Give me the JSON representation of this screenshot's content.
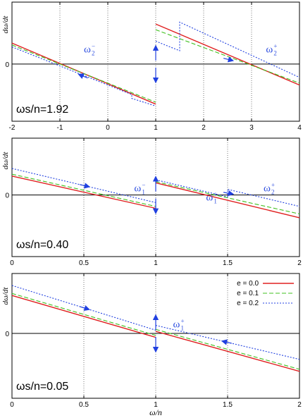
{
  "colors": {
    "e0": "#e02020",
    "e1": "#40c020",
    "e2": "#2040e0",
    "frame": "#000000",
    "grid": "#555555"
  },
  "chart_data": [
    {
      "type": "line",
      "panel": "top",
      "ylabel": "dω/dt",
      "xlabel": "",
      "ratio_label": "ωs/n=1.92",
      "xlim": [
        -2,
        4
      ],
      "x_ticks": [
        -2,
        -1,
        0,
        1,
        2,
        3,
        4
      ],
      "x_tick_labels": [
        "-2",
        "-1",
        "0",
        "1",
        "2",
        "3",
        "4"
      ],
      "y_ticks": [
        0
      ],
      "y_tick_labels": [
        "0"
      ],
      "ylim": [
        -1.6,
        1.6
      ],
      "grid_x": [
        -1,
        0,
        1,
        2,
        3
      ],
      "series": [
        {
          "name": "e = 0.0",
          "style": "solid",
          "segments": [
            [
              [
                -2,
                0.55
              ],
              [
                1,
                -1.05
              ]
            ],
            [
              [
                1,
                1.05
              ],
              [
                4,
                -0.55
              ]
            ]
          ]
        },
        {
          "name": "e = 0.1",
          "style": "dashed",
          "segments": [
            [
              [
                -2,
                0.5
              ],
              [
                1,
                -1.0
              ]
            ],
            [
              [
                1,
                0.9
              ],
              [
                4,
                -0.5
              ]
            ]
          ]
        },
        {
          "name": "e = 0.2",
          "style": "dotted",
          "segments": [
            [
              [
                -2,
                0.45
              ],
              [
                0.5,
                -0.8
              ],
              [
                0.5,
                -0.9
              ],
              [
                1,
                -1.1
              ]
            ],
            [
              [
                1,
                0.6
              ],
              [
                1.5,
                0.35
              ],
              [
                1.5,
                1.1
              ],
              [
                4,
                -0.35
              ]
            ]
          ]
        }
      ],
      "annotations": [
        {
          "text": "ω",
          "sup": "−",
          "sub": "2",
          "x": -0.5,
          "y": 0.3
        },
        {
          "text": "ω",
          "sup": "+",
          "sub": "2",
          "x": 3.3,
          "y": 0.3
        }
      ]
    },
    {
      "type": "line",
      "panel": "middle",
      "ylabel": "dω/dt",
      "xlabel": "",
      "ratio_label": "ωs/n=0.40",
      "xlim": [
        0,
        2
      ],
      "x_ticks": [
        0,
        0.5,
        1,
        1.5,
        2
      ],
      "x_tick_labels": [
        "0",
        "0.5",
        "1",
        "1.5",
        "2"
      ],
      "y_ticks": [
        0
      ],
      "y_tick_labels": [
        "0"
      ],
      "ylim": [
        -1.6,
        1.1
      ],
      "grid_x": [
        0.5,
        1,
        1.5
      ],
      "series": [
        {
          "name": "e = 0.0",
          "style": "solid",
          "segments": [
            [
              [
                0,
                0.5
              ],
              [
                1,
                -0.35
              ]
            ],
            [
              [
                1,
                0.32
              ],
              [
                2,
                -0.6
              ]
            ]
          ]
        },
        {
          "name": "e = 0.1",
          "style": "dashed",
          "segments": [
            [
              [
                0,
                0.55
              ],
              [
                1,
                -0.3
              ]
            ],
            [
              [
                1,
                0.35
              ],
              [
                2,
                -0.5
              ]
            ]
          ]
        },
        {
          "name": "e = 0.2",
          "style": "dotted",
          "segments": [
            [
              [
                0,
                0.7
              ],
              [
                1,
                -0.2
              ]
            ],
            [
              [
                1,
                0.4
              ],
              [
                1.5,
                -0.05
              ],
              [
                1.5,
                0.15
              ],
              [
                2,
                -0.3
              ]
            ]
          ]
        }
      ],
      "annotations": [
        {
          "text": "ω",
          "sup": "−",
          "sub": "1",
          "x": 0.85,
          "y": 0.1
        },
        {
          "text": "ω",
          "sup": "+",
          "sub": "1",
          "x": 1.35,
          "y": -0.15
        },
        {
          "text": "ω",
          "sup": "+",
          "sub": "2",
          "x": 1.75,
          "y": 0.1
        }
      ]
    },
    {
      "type": "line",
      "panel": "bottom",
      "ylabel": "dω/dt",
      "xlabel": "ω/n",
      "ratio_label": "ωs/n=0.05",
      "xlim": [
        0,
        2
      ],
      "x_ticks": [
        0,
        0.5,
        1,
        1.5,
        2
      ],
      "x_tick_labels": [
        "0",
        "0.5",
        "1",
        "1.5",
        "2"
      ],
      "y_ticks": [
        0
      ],
      "y_tick_labels": [
        "0"
      ],
      "ylim": [
        -1.6,
        1.1
      ],
      "grid_x": [
        0.5,
        1,
        1.5
      ],
      "legend": "top-right",
      "series": [
        {
          "name": "e = 0.0",
          "style": "solid",
          "segments": [
            [
              [
                0,
                0.95
              ],
              [
                1,
                -0.1
              ]
            ],
            [
              [
                1,
                0.05
              ],
              [
                2,
                -0.95
              ]
            ]
          ]
        },
        {
          "name": "e = 0.1",
          "style": "dashed",
          "segments": [
            [
              [
                0,
                1.0
              ],
              [
                1,
                -0.05
              ]
            ],
            [
              [
                1,
                0.1
              ],
              [
                2,
                -0.9
              ]
            ]
          ]
        },
        {
          "name": "e = 0.2",
          "style": "dotted",
          "segments": [
            [
              [
                0,
                1.2
              ],
              [
                1,
                0.08
              ]
            ],
            [
              [
                1,
                0.2
              ],
              [
                2,
                -0.65
              ]
            ]
          ]
        }
      ],
      "annotations": [
        {
          "text": "ω",
          "sup": "+",
          "sub": "1",
          "x": 1.12,
          "y": 0.15
        }
      ]
    }
  ]
}
